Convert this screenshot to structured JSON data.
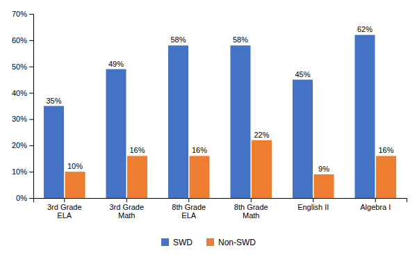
{
  "chart_data": {
    "type": "bar",
    "categories": [
      "3rd Grade\nELA",
      "3rd Grade\nMath",
      "8th Grade\nELA",
      "8th Grade\nMath",
      "English II",
      "Algebra I"
    ],
    "series": [
      {
        "name": "SWD",
        "color": "#4472C4",
        "values": [
          35,
          49,
          58,
          58,
          45,
          62
        ],
        "value_labels": [
          "35%",
          "49%",
          "58%",
          "58%",
          "45%",
          "62%"
        ]
      },
      {
        "name": "Non-SWD",
        "color": "#ED7D31",
        "values": [
          10,
          16,
          16,
          22,
          9,
          16
        ],
        "value_labels": [
          "10%",
          "16%",
          "16%",
          "22%",
          "9%",
          "16%"
        ]
      }
    ],
    "ylim": [
      0,
      70
    ],
    "yticks": [
      {
        "value": 0,
        "label": "0%"
      },
      {
        "value": 10,
        "label": "10%"
      },
      {
        "value": 20,
        "label": "20%"
      },
      {
        "value": 30,
        "label": "30%"
      },
      {
        "value": 40,
        "label": "40%"
      },
      {
        "value": 50,
        "label": "50%"
      },
      {
        "value": 60,
        "label": "60%"
      },
      {
        "value": 70,
        "label": "70%"
      }
    ],
    "grid": false,
    "legend": "bottom",
    "data_labels": true
  }
}
